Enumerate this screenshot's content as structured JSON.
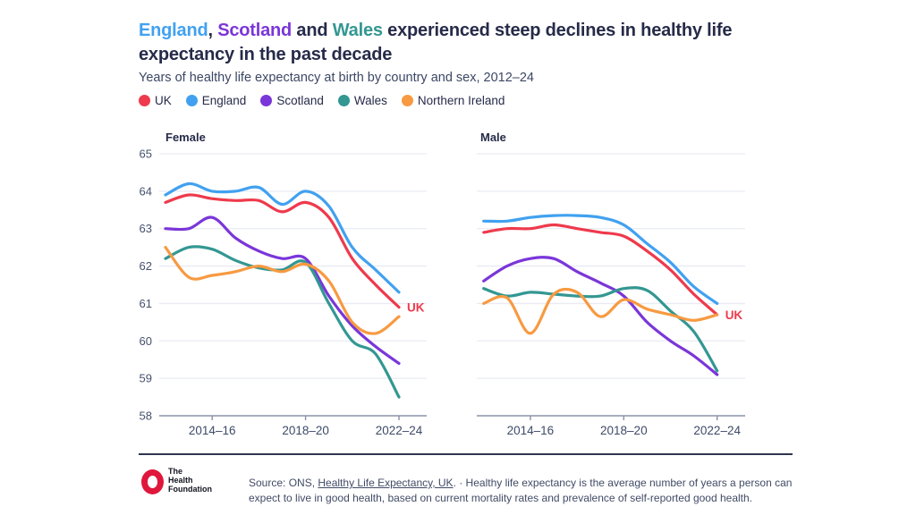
{
  "title": {
    "highlight_1": "England",
    "separator_1": ", ",
    "highlight_2": "Scotland",
    "separator_2": " and ",
    "highlight_3": "Wales",
    "rest": " experienced steep declines in healthy life expectancy in the past decade"
  },
  "subtitle": "Years of healthy life expectancy at birth by country and sex, 2012–24",
  "legend": {
    "items": [
      {
        "label": "UK",
        "color": "#ee3a4c"
      },
      {
        "label": "England",
        "color": "#41a1f0"
      },
      {
        "label": "Scotland",
        "color": "#7a36d9"
      },
      {
        "label": "Wales",
        "color": "#339792"
      },
      {
        "label": "Northern Ireland",
        "color": "#f79a41"
      }
    ]
  },
  "colors": {
    "text_dark": "#262b49",
    "subtitle_text": "#3c4764",
    "grid": "#e9ebf3",
    "axis_line": "#8a92a8",
    "x_tick_label": "#3e4a68",
    "y_tick_label": "#46516d",
    "separator": "#2f3550",
    "logo_red": "#e0173c",
    "source_text": "#414b66",
    "uk_end_label": "#ee3a4c"
  },
  "chart_data": [
    {
      "type": "line",
      "title": "Female",
      "x_tick_labels": [
        "2014–16",
        "2018–20",
        "2022–24"
      ],
      "x_tick_indices": [
        2,
        6,
        10
      ],
      "n_points": 11,
      "ylim": [
        58,
        65
      ],
      "yticks": [
        65,
        64,
        63,
        62,
        61,
        60,
        59,
        58
      ],
      "show_y_labels": true,
      "grid": true,
      "end_label": "UK",
      "series": [
        {
          "name": "UK",
          "color": "#ee3a4c",
          "values": [
            63.7,
            63.9,
            63.8,
            63.75,
            63.75,
            63.45,
            63.7,
            63.3,
            62.2,
            61.5,
            60.9
          ]
        },
        {
          "name": "England",
          "color": "#41a1f0",
          "values": [
            63.9,
            64.2,
            64.0,
            64.0,
            64.1,
            63.65,
            64.0,
            63.6,
            62.5,
            61.9,
            61.3
          ]
        },
        {
          "name": "Scotland",
          "color": "#7a36d9",
          "values": [
            63.0,
            63.0,
            63.3,
            62.75,
            62.4,
            62.2,
            62.2,
            61.2,
            60.4,
            59.85,
            59.4
          ]
        },
        {
          "name": "Wales",
          "color": "#339792",
          "values": [
            62.2,
            62.5,
            62.45,
            62.15,
            61.95,
            61.9,
            62.1,
            61.0,
            60.0,
            59.65,
            58.5
          ]
        },
        {
          "name": "Northern Ireland",
          "color": "#f79a41",
          "values": [
            62.5,
            61.7,
            61.75,
            61.85,
            62.0,
            61.85,
            62.05,
            61.6,
            60.5,
            60.2,
            60.65
          ]
        }
      ]
    },
    {
      "type": "line",
      "title": "Male",
      "x_tick_labels": [
        "2014–16",
        "2018–20",
        "2022–24"
      ],
      "x_tick_indices": [
        2,
        6,
        10
      ],
      "n_points": 11,
      "ylim": [
        58,
        65
      ],
      "yticks": [
        65,
        64,
        63,
        62,
        61,
        60,
        59,
        58
      ],
      "show_y_labels": false,
      "grid": true,
      "end_label": "UK",
      "series": [
        {
          "name": "UK",
          "color": "#ee3a4c",
          "values": [
            62.9,
            63.0,
            63.0,
            63.1,
            63.0,
            62.9,
            62.8,
            62.4,
            61.9,
            61.25,
            60.7
          ]
        },
        {
          "name": "England",
          "color": "#41a1f0",
          "values": [
            63.2,
            63.2,
            63.3,
            63.35,
            63.35,
            63.3,
            63.1,
            62.6,
            62.1,
            61.45,
            61.0
          ]
        },
        {
          "name": "Scotland",
          "color": "#7a36d9",
          "values": [
            61.6,
            62.0,
            62.2,
            62.2,
            61.85,
            61.55,
            61.2,
            60.5,
            60.0,
            59.6,
            59.1
          ]
        },
        {
          "name": "Wales",
          "color": "#339792",
          "values": [
            61.4,
            61.2,
            61.3,
            61.25,
            61.2,
            61.2,
            61.4,
            61.35,
            60.8,
            60.25,
            59.2
          ]
        },
        {
          "name": "Northern Ireland",
          "color": "#f79a41",
          "values": [
            61.0,
            61.15,
            60.2,
            61.25,
            61.3,
            60.65,
            61.1,
            60.85,
            60.7,
            60.55,
            60.7
          ]
        }
      ]
    }
  ],
  "footer": {
    "logo_lines": [
      "The",
      "Health",
      "Foundation"
    ],
    "source_prefix": "Source: ONS, ",
    "source_link": "Healthy Life Expectancy, UK",
    "source_suffix": ". · Healthy life expectancy is the average number of years a person can expect to live in good health, based on current mortality rates and prevalence of self-reported good health."
  }
}
